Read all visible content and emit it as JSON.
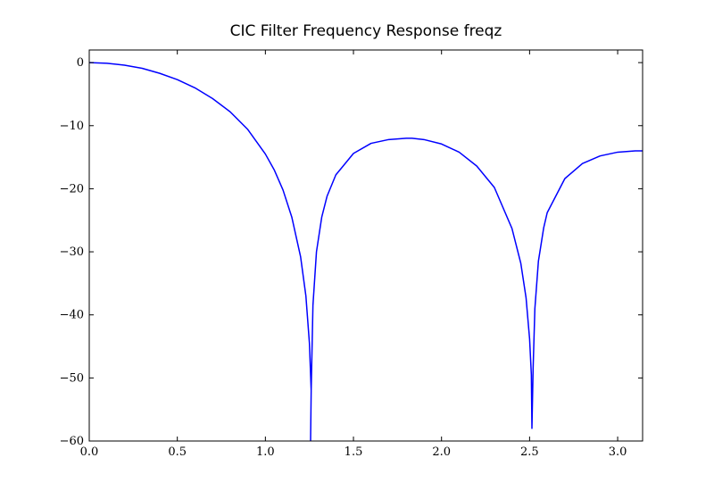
{
  "chart_data": {
    "type": "line",
    "title": "CIC Filter Frequency Response freqz",
    "xlabel": "",
    "ylabel": "",
    "xlim": [
      0.0,
      3.1416
    ],
    "ylim": [
      -60,
      2
    ],
    "grid": false,
    "legend": "none",
    "xticks": [
      0.0,
      0.5,
      1.0,
      1.5,
      2.0,
      2.5,
      3.0
    ],
    "xtick_labels": [
      "0.0",
      "0.5",
      "1.0",
      "1.5",
      "2.0",
      "2.5",
      "3.0"
    ],
    "yticks": [
      0,
      -10,
      -20,
      -30,
      -40,
      -50,
      -60
    ],
    "ytick_labels": [
      "0",
      "−10",
      "−20",
      "−30",
      "−40",
      "−50",
      "−60"
    ],
    "series": [
      {
        "color": "#0000ff",
        "x": [
          0.0,
          0.1,
          0.2,
          0.3,
          0.4,
          0.5,
          0.6,
          0.7,
          0.8,
          0.9,
          1.0,
          1.05,
          1.1,
          1.15,
          1.2,
          1.23,
          1.25,
          1.26,
          1.2566,
          1.26,
          1.27,
          1.29,
          1.32,
          1.35,
          1.4,
          1.5,
          1.6,
          1.7,
          1.8,
          1.8326,
          1.9,
          2.0,
          2.1,
          2.2,
          2.3,
          2.4,
          2.45,
          2.48,
          2.5,
          2.51,
          2.5133,
          2.52,
          2.53,
          2.55,
          2.58,
          2.6,
          2.7,
          2.8,
          2.9,
          3.0,
          3.1,
          3.1416
        ],
        "y": [
          0.0,
          -0.1,
          -0.4,
          -0.9,
          -1.7,
          -2.7,
          -4.0,
          -5.7,
          -7.8,
          -10.6,
          -14.5,
          -17.0,
          -20.2,
          -24.5,
          -30.8,
          -37.0,
          -44.5,
          -52.0,
          -60.0,
          -52.0,
          -38.5,
          -30.0,
          -24.5,
          -21.2,
          -17.8,
          -14.4,
          -12.8,
          -12.2,
          -12.0,
          -12.0,
          -12.2,
          -12.9,
          -14.2,
          -16.4,
          -19.8,
          -26.3,
          -31.8,
          -37.3,
          -43.8,
          -49.5,
          -58.0,
          -48.5,
          -39.0,
          -31.5,
          -26.2,
          -23.8,
          -18.4,
          -16.0,
          -14.8,
          -14.2,
          -14.0,
          -14.0
        ]
      }
    ]
  }
}
